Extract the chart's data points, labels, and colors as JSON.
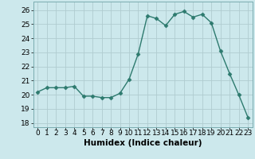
{
  "x": [
    0,
    1,
    2,
    3,
    4,
    5,
    6,
    7,
    8,
    9,
    10,
    11,
    12,
    13,
    14,
    15,
    16,
    17,
    18,
    19,
    20,
    21,
    22,
    23
  ],
  "y": [
    20.2,
    20.5,
    20.5,
    20.5,
    20.6,
    19.9,
    19.9,
    19.8,
    19.8,
    20.1,
    21.1,
    22.9,
    25.6,
    25.4,
    24.9,
    25.7,
    25.9,
    25.5,
    25.7,
    25.1,
    23.1,
    21.5,
    20.0,
    18.4
  ],
  "line_color": "#2d7a6e",
  "marker_color": "#2d7a6e",
  "bg_color": "#cce8ec",
  "grid_color": "#b0ccd0",
  "xlabel": "Humidex (Indice chaleur)",
  "ylim": [
    17.7,
    26.6
  ],
  "yticks": [
    18,
    19,
    20,
    21,
    22,
    23,
    24,
    25,
    26
  ],
  "xticks": [
    0,
    1,
    2,
    3,
    4,
    5,
    6,
    7,
    8,
    9,
    10,
    11,
    12,
    13,
    14,
    15,
    16,
    17,
    18,
    19,
    20,
    21,
    22,
    23
  ],
  "xlabel_fontsize": 7.5,
  "tick_fontsize": 6.5,
  "line_width": 1.0,
  "marker_size": 2.5
}
